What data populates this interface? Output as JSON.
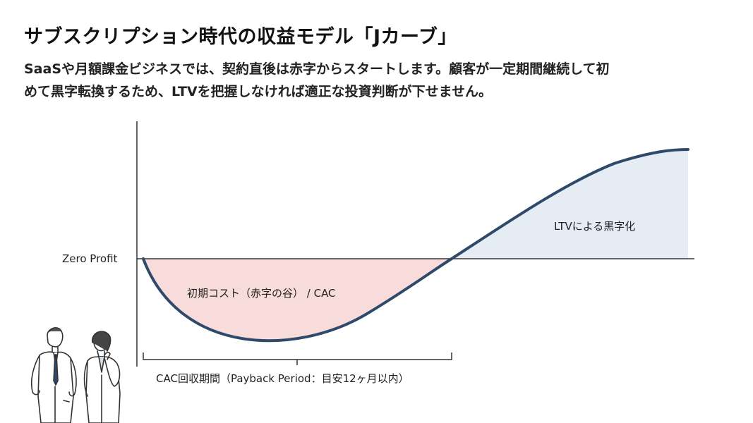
{
  "title": "サブスクリプション時代の収益モデル「Jカーブ」",
  "description": [
    "SaaSや月額課金ビジネスでは、契約直後は赤字からスタートします。顧客が一定期間継続して初",
    "めて黒字転換するため、LTVを把握しなければ適正な投資判断が下せません。"
  ],
  "labels": {
    "zero": "Zero Profit",
    "loss": "初期コスト（赤字の谷） / CAC",
    "profit": "LTVによる黒字化",
    "payback": "CAC回収期間（Payback Period：目安12ヶ月以内）"
  },
  "colors": {
    "curve": "#2e4a6b",
    "loss_fill": "#f8dcdc",
    "profit_fill": "#e6ecf4",
    "axis": "#333333"
  }
}
